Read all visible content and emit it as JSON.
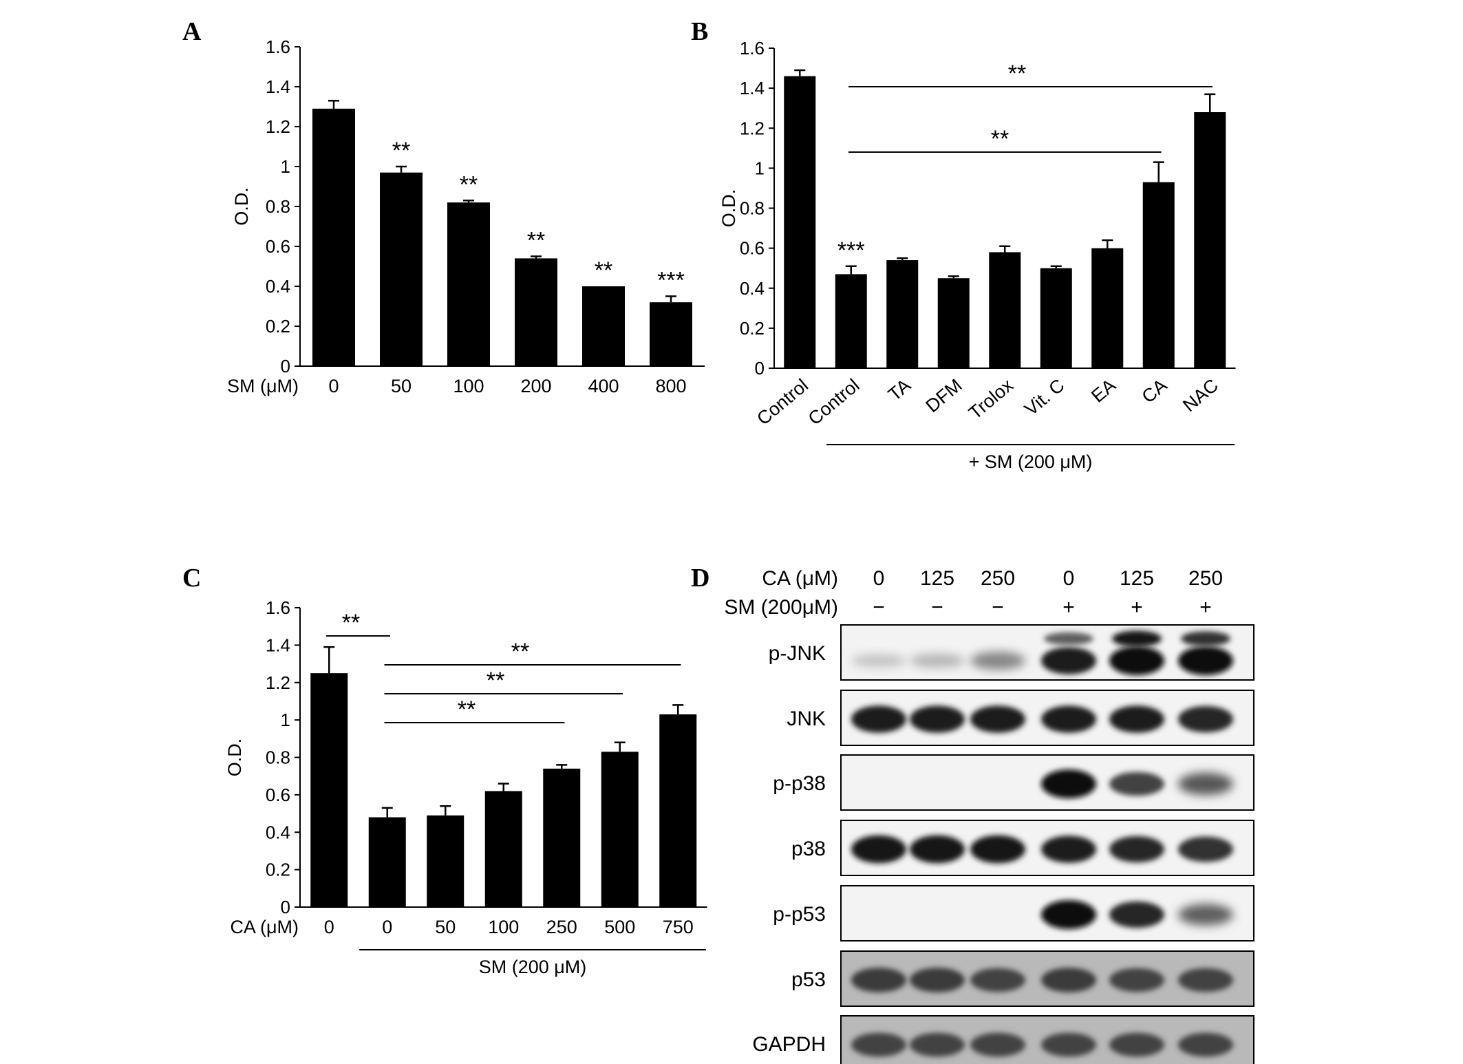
{
  "figure": {
    "panels": [
      "A",
      "B",
      "C",
      "D"
    ]
  },
  "chart_data": [
    {
      "panel": "A",
      "type": "bar",
      "ylabel": "O.D.",
      "xlabel": "SM (μM)",
      "ylim": [
        0,
        1.6
      ],
      "yticks": [
        "0",
        "0.2",
        "0.4",
        "0.6",
        "0.8",
        "1",
        "1.2",
        "1.4",
        "1.6"
      ],
      "categories": [
        "0",
        "50",
        "100",
        "200",
        "400",
        "800"
      ],
      "values": [
        1.29,
        0.97,
        0.82,
        0.54,
        0.4,
        0.32
      ],
      "errors": [
        0.04,
        0.03,
        0.01,
        0.01,
        0.0,
        0.03
      ],
      "significance": [
        "",
        "**",
        "**",
        "**",
        "**",
        "***"
      ]
    },
    {
      "panel": "B",
      "type": "bar",
      "ylabel": "O.D.",
      "ylim": [
        0,
        1.6
      ],
      "yticks": [
        "0",
        "0.2",
        "0.4",
        "0.6",
        "0.8",
        "1",
        "1.2",
        "1.4",
        "1.6"
      ],
      "categories": [
        "Control",
        "Control",
        "TA",
        "DFM",
        "Trolox",
        "Vit. C",
        "EA",
        "CA",
        "NAC"
      ],
      "values": [
        1.46,
        0.47,
        0.54,
        0.45,
        0.58,
        0.5,
        0.6,
        0.93,
        1.28
      ],
      "errors": [
        0.03,
        0.04,
        0.01,
        0.01,
        0.03,
        0.01,
        0.04,
        0.1,
        0.09
      ],
      "significance": [
        "",
        "***",
        "",
        "",
        "",
        "",
        "",
        "",
        ""
      ],
      "comparisons": [
        {
          "from": 1,
          "to": 8,
          "label": "**"
        },
        {
          "from": 1,
          "to": 7,
          "label": "**"
        }
      ],
      "group_label": "+ SM (200 μM)",
      "group_range": [
        1,
        8
      ]
    },
    {
      "panel": "C",
      "type": "bar",
      "ylabel": "O.D.",
      "xlabel": "CA (μM)",
      "ylim": [
        0,
        1.6
      ],
      "yticks": [
        "0",
        "0.2",
        "0.4",
        "0.6",
        "0.8",
        "1",
        "1.2",
        "1.4",
        "1.6"
      ],
      "categories": [
        "0",
        "0",
        "50",
        "100",
        "250",
        "500",
        "750"
      ],
      "values": [
        1.25,
        0.48,
        0.49,
        0.62,
        0.74,
        0.83,
        1.03
      ],
      "errors": [
        0.14,
        0.05,
        0.05,
        0.04,
        0.02,
        0.05,
        0.05
      ],
      "comparisons": [
        {
          "from": 0,
          "to": 1,
          "label": "**"
        },
        {
          "from": 1,
          "to": 6,
          "label": "**"
        },
        {
          "from": 1,
          "to": 5,
          "label": "**"
        },
        {
          "from": 1,
          "to": 4,
          "label": "**"
        }
      ],
      "group_label": "SM (200 μM)",
      "group_range": [
        1,
        6
      ]
    },
    {
      "panel": "D",
      "type": "table",
      "header_rows": [
        {
          "label": "CA (μM)",
          "values": [
            "0",
            "125",
            "250",
            "0",
            "125",
            "250"
          ]
        },
        {
          "label": "SM (200μM)",
          "values": [
            "−",
            "−",
            "−",
            "+",
            "+",
            "+"
          ]
        }
      ],
      "blots": [
        {
          "label": "p-JNK",
          "intensity": [
            0.03,
            0.1,
            0.35,
            0.9,
            1.0,
            1.0
          ],
          "upper_band": [
            0.0,
            0.0,
            0.0,
            0.55,
            0.95,
            0.8
          ]
        },
        {
          "label": "JNK",
          "intensity": [
            0.9,
            0.9,
            0.9,
            0.9,
            0.9,
            0.85
          ]
        },
        {
          "label": "p-p38",
          "intensity": [
            0.0,
            0.0,
            0.0,
            1.0,
            0.7,
            0.6
          ]
        },
        {
          "label": "p38",
          "intensity": [
            0.95,
            0.95,
            0.95,
            0.9,
            0.85,
            0.8
          ]
        },
        {
          "label": "p-p53",
          "intensity": [
            0.0,
            0.0,
            0.0,
            1.0,
            0.85,
            0.55
          ]
        },
        {
          "label": "p53",
          "intensity": [
            0.75,
            0.75,
            0.7,
            0.75,
            0.7,
            0.7
          ]
        },
        {
          "label": "GAPDH",
          "intensity": [
            0.7,
            0.7,
            0.7,
            0.7,
            0.7,
            0.7
          ]
        }
      ]
    }
  ]
}
